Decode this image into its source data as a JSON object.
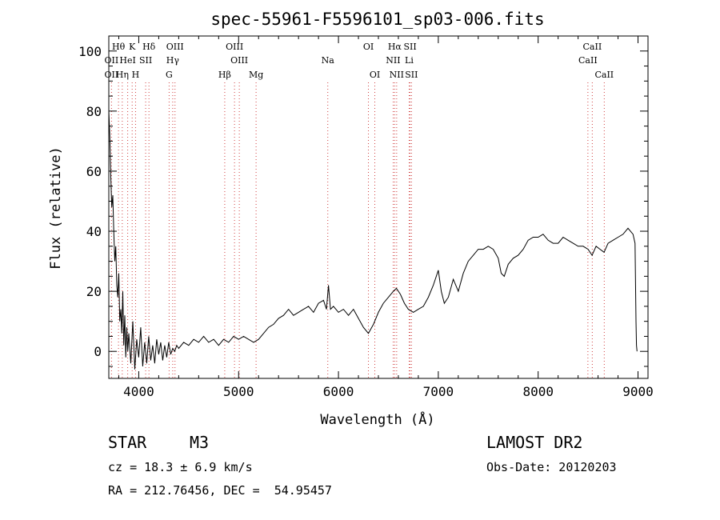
{
  "chart_data": {
    "type": "line",
    "title": "spec-55961-F5596101_sp03-006.fits",
    "xlabel": "Wavelength (Å)",
    "ylabel": "Flux (relative)",
    "xlim": [
      3700,
      9100
    ],
    "ylim": [
      -9,
      105
    ],
    "x_ticks": [
      4000,
      5000,
      6000,
      7000,
      8000,
      9000
    ],
    "y_ticks": [
      0,
      20,
      40,
      60,
      80,
      100
    ],
    "grid": false,
    "line_color": "#000000",
    "marker_color": "#d04040",
    "series": [
      {
        "values": [
          {
            "x": 3700,
            "y": 80
          },
          {
            "x": 3710,
            "y": 72
          },
          {
            "x": 3720,
            "y": 58
          },
          {
            "x": 3730,
            "y": 48
          },
          {
            "x": 3740,
            "y": 52
          },
          {
            "x": 3750,
            "y": 40
          },
          {
            "x": 3760,
            "y": 30
          },
          {
            "x": 3770,
            "y": 35
          },
          {
            "x": 3780,
            "y": 22
          },
          {
            "x": 3790,
            "y": 18
          },
          {
            "x": 3800,
            "y": 26
          },
          {
            "x": 3810,
            "y": 10
          },
          {
            "x": 3820,
            "y": 14
          },
          {
            "x": 3830,
            "y": 6
          },
          {
            "x": 3840,
            "y": 20
          },
          {
            "x": 3850,
            "y": 2
          },
          {
            "x": 3860,
            "y": 12
          },
          {
            "x": 3870,
            "y": -2
          },
          {
            "x": 3880,
            "y": 8
          },
          {
            "x": 3890,
            "y": 0
          },
          {
            "x": 3900,
            "y": 6
          },
          {
            "x": 3920,
            "y": -4
          },
          {
            "x": 3940,
            "y": 10
          },
          {
            "x": 3960,
            "y": -6
          },
          {
            "x": 3980,
            "y": 4
          },
          {
            "x": 4000,
            "y": -2
          },
          {
            "x": 4020,
            "y": 8
          },
          {
            "x": 4040,
            "y": -5
          },
          {
            "x": 4060,
            "y": 3
          },
          {
            "x": 4080,
            "y": -4
          },
          {
            "x": 4100,
            "y": 5
          },
          {
            "x": 4120,
            "y": -3
          },
          {
            "x": 4140,
            "y": 2
          },
          {
            "x": 4160,
            "y": -4
          },
          {
            "x": 4180,
            "y": 4
          },
          {
            "x": 4200,
            "y": -1
          },
          {
            "x": 4220,
            "y": 3
          },
          {
            "x": 4240,
            "y": -3
          },
          {
            "x": 4260,
            "y": 2
          },
          {
            "x": 4280,
            "y": -2
          },
          {
            "x": 4300,
            "y": 3
          },
          {
            "x": 4320,
            "y": -1
          },
          {
            "x": 4340,
            "y": 1
          },
          {
            "x": 4360,
            "y": 0
          },
          {
            "x": 4380,
            "y": 2
          },
          {
            "x": 4400,
            "y": 1
          },
          {
            "x": 4450,
            "y": 3
          },
          {
            "x": 4500,
            "y": 2
          },
          {
            "x": 4550,
            "y": 4
          },
          {
            "x": 4600,
            "y": 3
          },
          {
            "x": 4650,
            "y": 5
          },
          {
            "x": 4700,
            "y": 3
          },
          {
            "x": 4750,
            "y": 4
          },
          {
            "x": 4800,
            "y": 2
          },
          {
            "x": 4850,
            "y": 4
          },
          {
            "x": 4900,
            "y": 3
          },
          {
            "x": 4950,
            "y": 5
          },
          {
            "x": 5000,
            "y": 4
          },
          {
            "x": 5050,
            "y": 5
          },
          {
            "x": 5100,
            "y": 4
          },
          {
            "x": 5150,
            "y": 3
          },
          {
            "x": 5200,
            "y": 4
          },
          {
            "x": 5250,
            "y": 6
          },
          {
            "x": 5300,
            "y": 8
          },
          {
            "x": 5350,
            "y": 9
          },
          {
            "x": 5400,
            "y": 11
          },
          {
            "x": 5450,
            "y": 12
          },
          {
            "x": 5500,
            "y": 14
          },
          {
            "x": 5550,
            "y": 12
          },
          {
            "x": 5600,
            "y": 13
          },
          {
            "x": 5650,
            "y": 14
          },
          {
            "x": 5700,
            "y": 15
          },
          {
            "x": 5750,
            "y": 13
          },
          {
            "x": 5800,
            "y": 16
          },
          {
            "x": 5850,
            "y": 17
          },
          {
            "x": 5880,
            "y": 14
          },
          {
            "x": 5900,
            "y": 22
          },
          {
            "x": 5920,
            "y": 14
          },
          {
            "x": 5950,
            "y": 15
          },
          {
            "x": 6000,
            "y": 13
          },
          {
            "x": 6050,
            "y": 14
          },
          {
            "x": 6100,
            "y": 12
          },
          {
            "x": 6150,
            "y": 14
          },
          {
            "x": 6200,
            "y": 11
          },
          {
            "x": 6250,
            "y": 8
          },
          {
            "x": 6300,
            "y": 6
          },
          {
            "x": 6350,
            "y": 9
          },
          {
            "x": 6400,
            "y": 13
          },
          {
            "x": 6450,
            "y": 16
          },
          {
            "x": 6500,
            "y": 18
          },
          {
            "x": 6550,
            "y": 20
          },
          {
            "x": 6580,
            "y": 21
          },
          {
            "x": 6620,
            "y": 19
          },
          {
            "x": 6660,
            "y": 16
          },
          {
            "x": 6700,
            "y": 14
          },
          {
            "x": 6750,
            "y": 13
          },
          {
            "x": 6800,
            "y": 14
          },
          {
            "x": 6850,
            "y": 15
          },
          {
            "x": 6900,
            "y": 18
          },
          {
            "x": 6950,
            "y": 22
          },
          {
            "x": 7000,
            "y": 27
          },
          {
            "x": 7030,
            "y": 20
          },
          {
            "x": 7060,
            "y": 16
          },
          {
            "x": 7100,
            "y": 18
          },
          {
            "x": 7150,
            "y": 24
          },
          {
            "x": 7200,
            "y": 20
          },
          {
            "x": 7250,
            "y": 26
          },
          {
            "x": 7300,
            "y": 30
          },
          {
            "x": 7350,
            "y": 32
          },
          {
            "x": 7400,
            "y": 34
          },
          {
            "x": 7450,
            "y": 34
          },
          {
            "x": 7500,
            "y": 35
          },
          {
            "x": 7550,
            "y": 34
          },
          {
            "x": 7600,
            "y": 31
          },
          {
            "x": 7630,
            "y": 26
          },
          {
            "x": 7660,
            "y": 25
          },
          {
            "x": 7700,
            "y": 29
          },
          {
            "x": 7750,
            "y": 31
          },
          {
            "x": 7800,
            "y": 32
          },
          {
            "x": 7850,
            "y": 34
          },
          {
            "x": 7900,
            "y": 37
          },
          {
            "x": 7950,
            "y": 38
          },
          {
            "x": 8000,
            "y": 38
          },
          {
            "x": 8050,
            "y": 39
          },
          {
            "x": 8100,
            "y": 37
          },
          {
            "x": 8150,
            "y": 36
          },
          {
            "x": 8200,
            "y": 36
          },
          {
            "x": 8250,
            "y": 38
          },
          {
            "x": 8300,
            "y": 37
          },
          {
            "x": 8350,
            "y": 36
          },
          {
            "x": 8400,
            "y": 35
          },
          {
            "x": 8450,
            "y": 35
          },
          {
            "x": 8500,
            "y": 34
          },
          {
            "x": 8540,
            "y": 32
          },
          {
            "x": 8580,
            "y": 35
          },
          {
            "x": 8620,
            "y": 34
          },
          {
            "x": 8660,
            "y": 33
          },
          {
            "x": 8700,
            "y": 36
          },
          {
            "x": 8750,
            "y": 37
          },
          {
            "x": 8800,
            "y": 38
          },
          {
            "x": 8850,
            "y": 39
          },
          {
            "x": 8900,
            "y": 41
          },
          {
            "x": 8950,
            "y": 39
          },
          {
            "x": 8970,
            "y": 36
          },
          {
            "x": 8980,
            "y": 10
          },
          {
            "x": 8985,
            "y": 2
          },
          {
            "x": 8990,
            "y": 0
          }
        ]
      }
    ],
    "line_markers": [
      {
        "label": "Hθ",
        "x": 3797,
        "row": 0
      },
      {
        "label": "K",
        "x": 3934,
        "row": 0
      },
      {
        "label": "Hδ",
        "x": 4102,
        "row": 0
      },
      {
        "label": "OIII",
        "x": 4363,
        "row": 0
      },
      {
        "label": "OIII",
        "x": 4959,
        "row": 0
      },
      {
        "label": "OI",
        "x": 6300,
        "row": 0
      },
      {
        "label": "Hα",
        "x": 6563,
        "row": 0
      },
      {
        "label": "SII",
        "x": 6717,
        "row": 0
      },
      {
        "label": "CaII",
        "x": 8542,
        "row": 0
      },
      {
        "label": "OII",
        "x": 3727,
        "row": 1
      },
      {
        "label": "HeI",
        "x": 3889,
        "row": 1
      },
      {
        "label": "SII",
        "x": 4069,
        "row": 1
      },
      {
        "label": "Hγ",
        "x": 4340,
        "row": 1
      },
      {
        "label": "OIII",
        "x": 5007,
        "row": 1
      },
      {
        "label": "Na",
        "x": 5893,
        "row": 1
      },
      {
        "label": "NII",
        "x": 6548,
        "row": 1
      },
      {
        "label": "Li",
        "x": 6708,
        "row": 1
      },
      {
        "label": "CaII",
        "x": 8498,
        "row": 1
      },
      {
        "label": "OII",
        "x": 3727,
        "row": 2
      },
      {
        "label": "Hη",
        "x": 3835,
        "row": 2
      },
      {
        "label": "H",
        "x": 3968,
        "row": 2
      },
      {
        "label": "G",
        "x": 4304,
        "row": 2
      },
      {
        "label": "Hβ",
        "x": 4861,
        "row": 2
      },
      {
        "label": "Mg",
        "x": 5175,
        "row": 2
      },
      {
        "label": "OI",
        "x": 6364,
        "row": 2
      },
      {
        "label": "NII",
        "x": 6583,
        "row": 2
      },
      {
        "label": "SII",
        "x": 6731,
        "row": 2
      },
      {
        "label": "CaII",
        "x": 8662,
        "row": 2
      }
    ]
  },
  "info": {
    "object_class": "STAR",
    "subclass": "M3",
    "survey": "LAMOST DR2",
    "cz": "cz = 18.3 ± 6.9 km/s",
    "obs_date": "Obs-Date: 20120203",
    "coords": "RA = 212.76456, DEC =  54.95457"
  }
}
